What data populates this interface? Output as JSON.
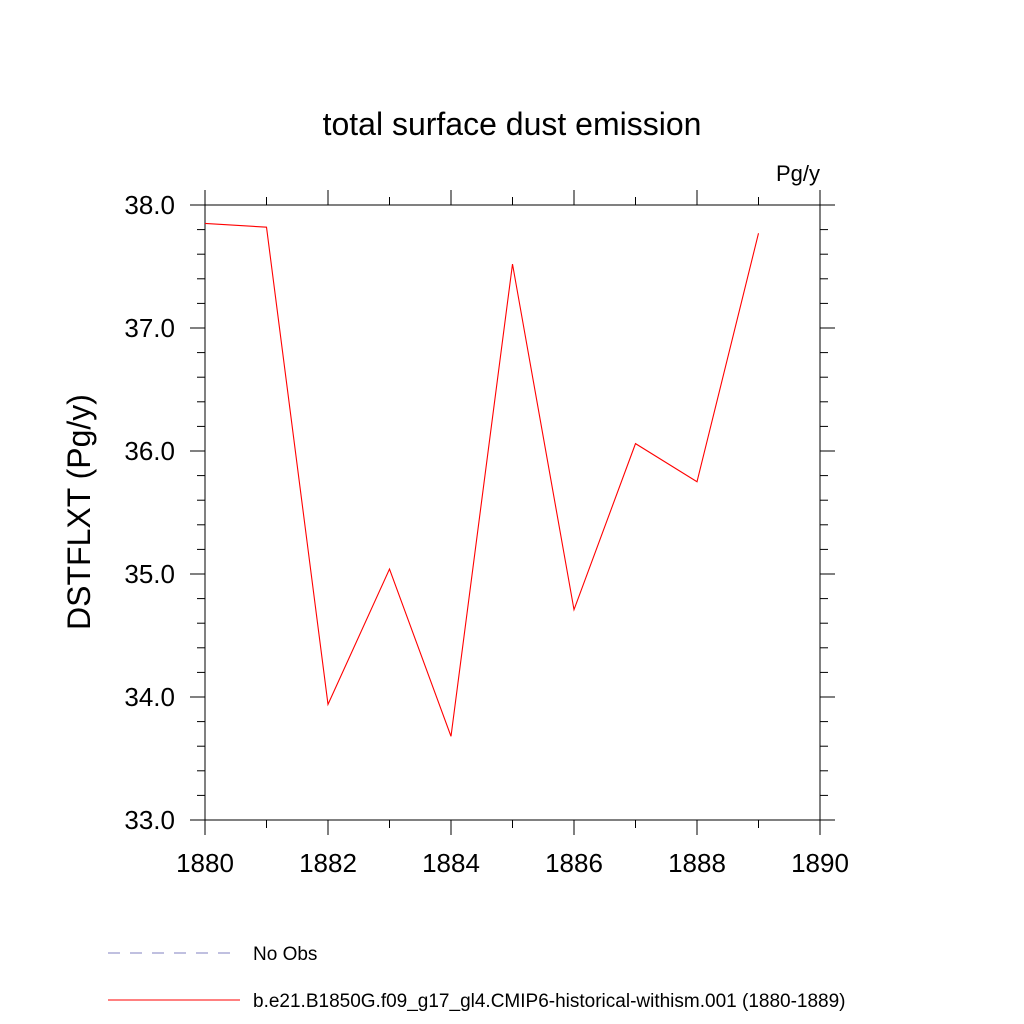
{
  "chart_data": {
    "type": "line",
    "title": "total surface dust emission",
    "units_label": "Pg/y",
    "xlabel": "",
    "ylabel": "DSTFLXT  (Pg/y)",
    "xlim": [
      1880,
      1890
    ],
    "ylim": [
      33.0,
      38.0
    ],
    "x_ticks": [
      1880,
      1882,
      1884,
      1886,
      1888,
      1890
    ],
    "x_tick_labels": [
      "1880",
      "1882",
      "1884",
      "1886",
      "1888",
      "1890"
    ],
    "y_ticks": [
      33.0,
      34.0,
      35.0,
      36.0,
      37.0,
      38.0
    ],
    "y_tick_labels": [
      "33.0",
      "34.0",
      "35.0",
      "36.0",
      "37.0",
      "38.0"
    ],
    "grid": false,
    "legend_position": "bottom-left",
    "series": [
      {
        "name": "b.e21.B1850G.f09_g17_gl4.CMIP6-historical-withism.001 (1880-1889)",
        "color": "#ff0000",
        "style": "solid",
        "x": [
          1880,
          1881,
          1882,
          1883,
          1884,
          1885,
          1886,
          1887,
          1888,
          1889
        ],
        "y": [
          37.85,
          37.82,
          33.94,
          35.04,
          33.68,
          37.52,
          34.71,
          36.06,
          35.75,
          37.77
        ]
      }
    ],
    "legend": [
      {
        "label": "No Obs",
        "color": "#8080c0",
        "style": "dashed"
      },
      {
        "label": "b.e21.B1850G.f09_g17_gl4.CMIP6-historical-withism.001 (1880-1889)",
        "color": "#ff0000",
        "style": "solid"
      }
    ]
  }
}
